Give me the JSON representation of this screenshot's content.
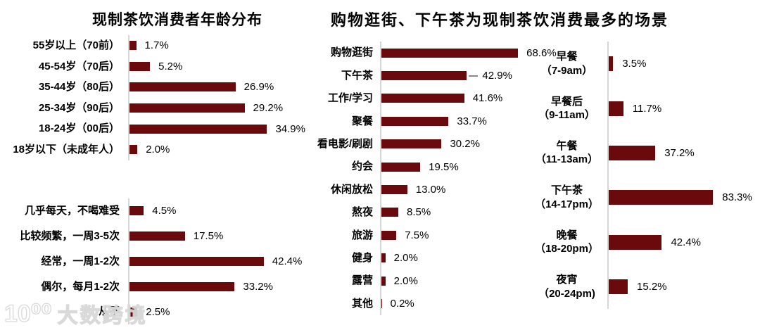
{
  "colors": {
    "bar": "#6A0A0C",
    "axis": "#D6D6D6",
    "ink": "#000000",
    "leader": "#8A8A8A",
    "watermark_outline": "#D8D8D8"
  },
  "watermark": {
    "logo": "10⁰⁰",
    "text": "大数跨境"
  },
  "chart_data": [
    {
      "id": "age",
      "type": "bar",
      "title": "现制茶饮消费者年龄分布",
      "unit": "%",
      "categories": [
        "55岁以上（70前）",
        "45-54岁（70后）",
        "35-44岁（80后）",
        "25-34岁（90后）",
        "18-24岁（00后）",
        "18岁以下（未成年人）"
      ],
      "values": [
        1.7,
        5.2,
        26.9,
        29.2,
        34.9,
        2.0
      ],
      "xlim": [
        0,
        38
      ],
      "value_labels": true,
      "orientation": "horizontal"
    },
    {
      "id": "frequency",
      "type": "bar",
      "title": "",
      "unit": "%",
      "categories": [
        "几乎每天，不喝难受",
        "比较频繁，一周3-5次",
        "经常，一周1-2次",
        "偶尔，每月1-2次",
        "从不"
      ],
      "values": [
        4.5,
        17.5,
        42.4,
        33.2,
        2.5
      ],
      "xlim": [
        0,
        47
      ],
      "value_labels": true,
      "orientation": "horizontal"
    },
    {
      "id": "scene",
      "type": "bar",
      "title": "购物逛街、下午茶为现制茶饮消费最多的场景",
      "unit": "%",
      "categories": [
        "购物逛街",
        "下午茶",
        "工作/学习",
        "聚餐",
        "看电影/刷剧",
        "约会",
        "休闲放松",
        "熬夜",
        "旅游",
        "健身",
        "露营",
        "其他"
      ],
      "values": [
        68.6,
        42.9,
        41.6,
        33.7,
        30.2,
        19.5,
        13.0,
        8.5,
        7.5,
        2.0,
        2.0,
        0.2
      ],
      "xlim": [
        0,
        75
      ],
      "value_labels": true,
      "orientation": "horizontal"
    },
    {
      "id": "time",
      "type": "bar",
      "title": "",
      "unit": "%",
      "categories": [
        "早餐\n（7-9am）",
        "早餐后\n（9-11am）",
        "午餐\n（11-13am）",
        "下午茶\n（14-17pm）",
        "晚餐\n（18-20pm）",
        "夜宵\n（20-24pm)"
      ],
      "values": [
        3.5,
        11.7,
        37.2,
        83.3,
        42.4,
        15.2
      ],
      "xlim": [
        0,
        95
      ],
      "value_labels": true,
      "orientation": "horizontal"
    }
  ]
}
